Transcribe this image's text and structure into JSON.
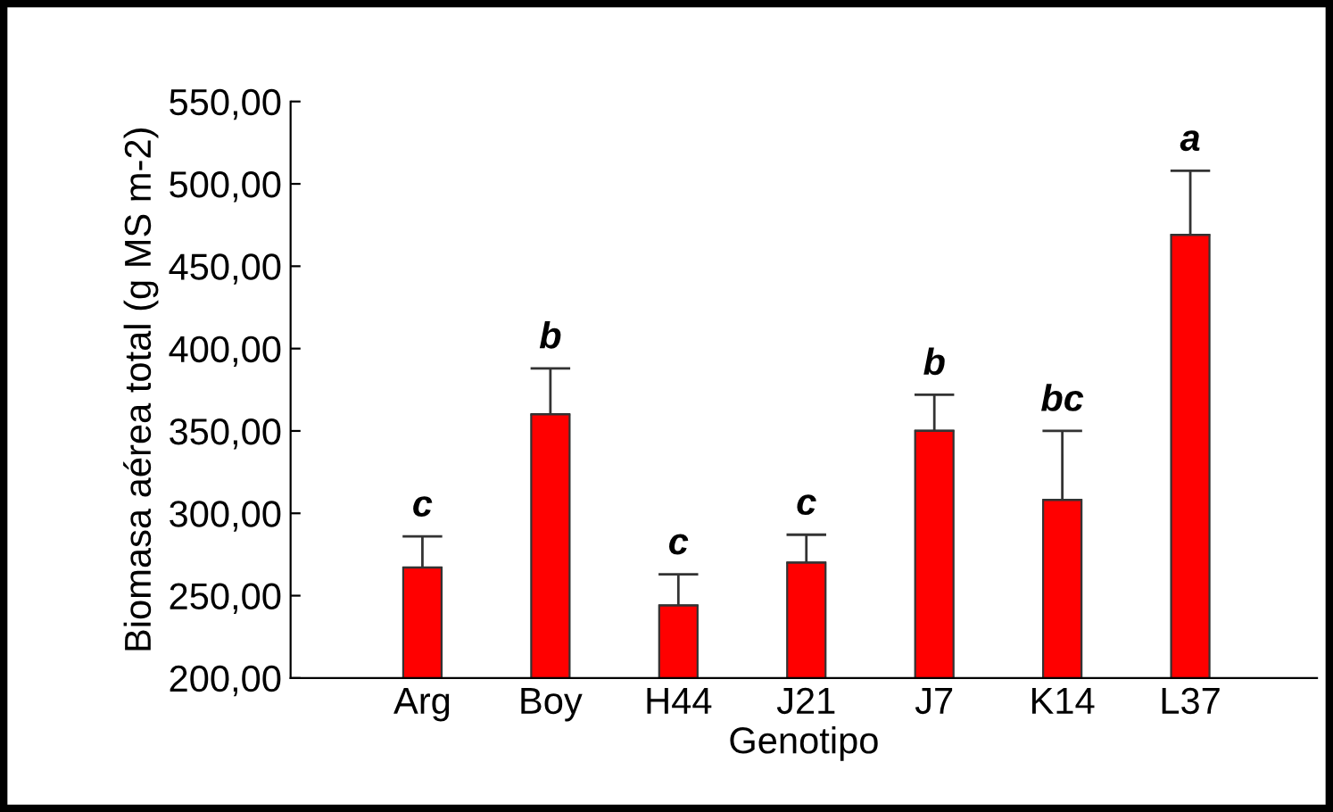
{
  "chart_data": {
    "type": "bar",
    "xlabel": "Genotipo",
    "ylabel": "Biomasa aérea total (g MS m-2)",
    "categories": [
      "Arg",
      "Boy",
      "H44",
      "J21",
      "J7",
      "K14",
      "L37"
    ],
    "values": [
      267,
      360,
      244,
      270,
      350,
      308,
      469
    ],
    "errors": [
      [
        267,
        286
      ],
      [
        360,
        388
      ],
      [
        244,
        263
      ],
      [
        270,
        287
      ],
      [
        350,
        372
      ],
      [
        308,
        350
      ],
      [
        469,
        508
      ]
    ],
    "color": "#ff0000",
    "ylim": [
      200,
      550
    ],
    "yticks": [
      {
        "value": 200,
        "label": "200,00"
      },
      {
        "value": 250,
        "label": "250,00"
      },
      {
        "value": 300,
        "label": "300,00"
      },
      {
        "value": 350,
        "label": "350,00"
      },
      {
        "value": 400,
        "label": "400,00"
      },
      {
        "value": 450,
        "label": "450,00"
      },
      {
        "value": 500,
        "label": "500,00"
      },
      {
        "value": 550,
        "label": "550,00"
      }
    ],
    "annotations": [
      {
        "text": "c",
        "x": "Arg",
        "y": 286
      },
      {
        "text": "b",
        "x": "Boy",
        "y": 388
      },
      {
        "text": "c",
        "x": "H44",
        "y": 263
      },
      {
        "text": "c",
        "x": "J21",
        "y": 287
      },
      {
        "text": "b",
        "x": "J7",
        "y": 372
      },
      {
        "text": "bc",
        "x": "K14",
        "y": 350
      },
      {
        "text": "a",
        "x": "L37",
        "y": 508
      }
    ],
    "grid": false
  }
}
